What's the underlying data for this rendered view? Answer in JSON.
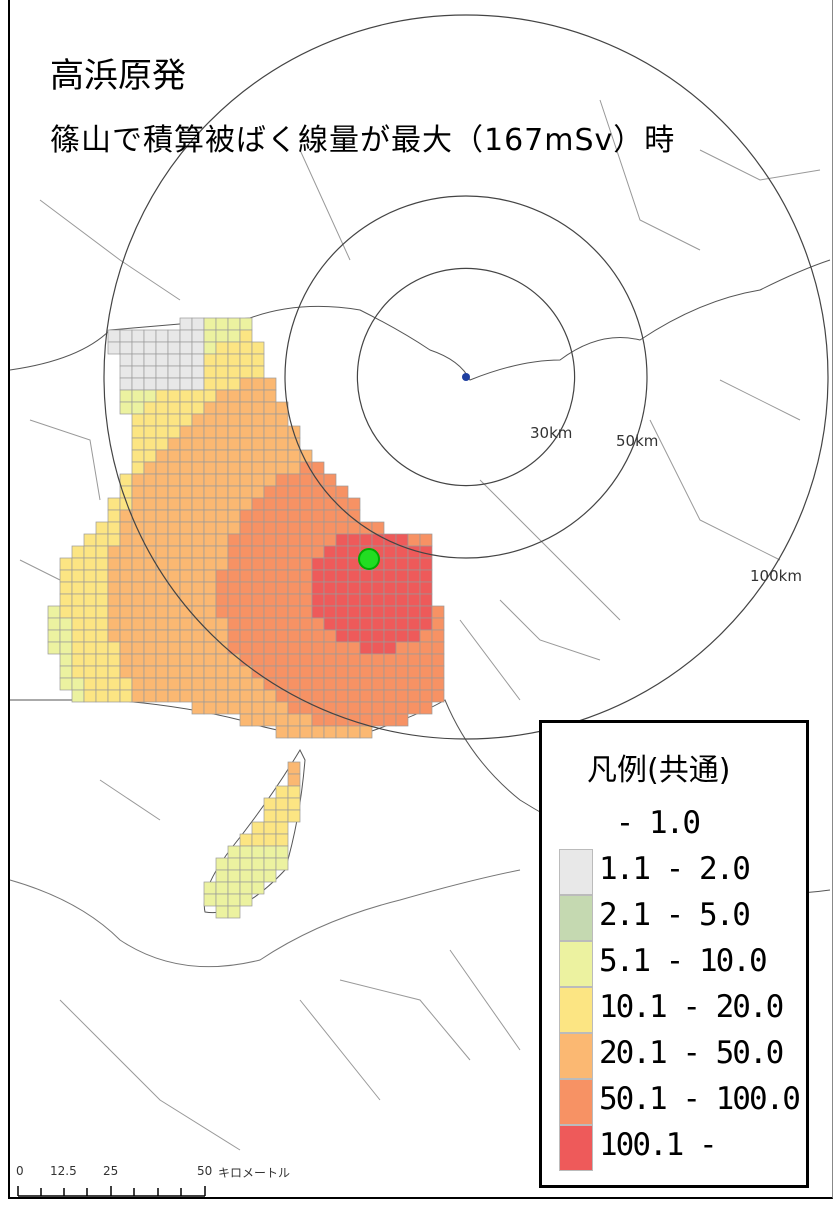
{
  "title": "高浜原発",
  "subtitle": "篠山で積算被ばく線量が最大（167mSv）時",
  "map": {
    "rings": [
      {
        "label": "30km",
        "km": 30
      },
      {
        "label": "50km",
        "km": 50
      },
      {
        "label": "100km",
        "km": 100
      }
    ],
    "plant_marker_color": "#1f3fa0",
    "max_point_marker_color": "#22dd22"
  },
  "legend": {
    "title": "凡例(共通)",
    "items": [
      {
        "label": " - 1.0",
        "color": "#ffffff"
      },
      {
        "label": "1.1 - 2.0",
        "color": "#e8e8e8"
      },
      {
        "label": "2.1 - 5.0",
        "color": "#c5d9b1"
      },
      {
        "label": "5.1 - 10.0",
        "color": "#ecf2a0"
      },
      {
        "label": "10.1 - 20.0",
        "color": "#fce583"
      },
      {
        "label": "20.1 - 50.0",
        "color": "#fbb872"
      },
      {
        "label": "50.1 - 100.0",
        "color": "#f79264"
      },
      {
        "label": "100.1 -",
        "color": "#ee5a5a"
      }
    ]
  },
  "scale_bar": {
    "ticks": [
      "0",
      "12.5",
      "25",
      "50"
    ],
    "unit": "キロメートル"
  }
}
